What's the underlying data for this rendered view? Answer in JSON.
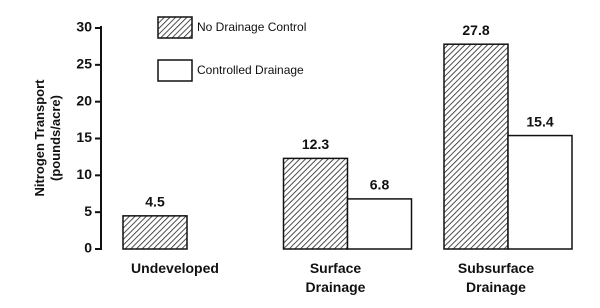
{
  "chart_data": {
    "type": "bar",
    "y_label": "Nitrogen Transport (pounds/acre)",
    "categories": [
      "Undeveloped",
      "Surface Drainage",
      "Subsurface Drainage"
    ],
    "series": [
      {
        "name": "No Drainage Control",
        "color": "#222222",
        "pattern": "hatch",
        "values": [
          4.5,
          12.3,
          27.8
        ]
      },
      {
        "name": "Controlled Drainage",
        "color": "#ffffff",
        "values": [
          null,
          6.8,
          15.4
        ]
      }
    ],
    "ylim": [
      0,
      30
    ],
    "yticks": [
      0,
      5,
      10,
      15,
      20,
      25,
      30
    ],
    "grid": false,
    "legend": "top-left"
  }
}
